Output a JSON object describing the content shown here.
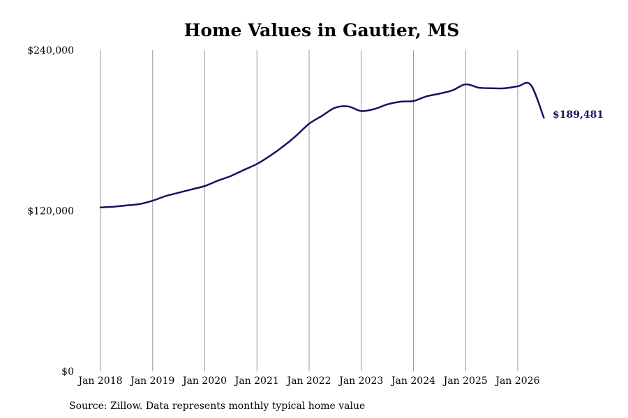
{
  "chart_data": {
    "type": "line",
    "title": "Home Values in Gautier, MS",
    "xlabel": "",
    "ylabel": "",
    "ylim": [
      0,
      240000
    ],
    "y_ticks": [
      "$0",
      "$120,000",
      "$240,000"
    ],
    "x_ticks": [
      "Jan 2018",
      "Jan 2019",
      "Jan 2020",
      "Jan 2021",
      "Jan 2022",
      "Jan 2023",
      "Jan 2024",
      "Jan 2025",
      "Jan 2026"
    ],
    "x_tick_dates": [
      "2018-01",
      "2019-01",
      "2020-01",
      "2021-01",
      "2022-01",
      "2023-01",
      "2024-01",
      "2025-01",
      "2026-01"
    ],
    "grid": "vertical",
    "legend": "none",
    "end_label": "$189,481",
    "line_color": "#14135e",
    "series": [
      {
        "x": [
          "2018-01",
          "2018-04",
          "2018-07",
          "2018-10",
          "2019-01",
          "2019-04",
          "2019-07",
          "2019-10",
          "2020-01",
          "2020-04",
          "2020-07",
          "2020-10",
          "2021-01",
          "2021-04",
          "2021-07",
          "2021-10",
          "2022-01",
          "2022-04",
          "2022-07",
          "2022-10",
          "2023-01",
          "2023-04",
          "2023-07",
          "2023-10",
          "2024-01",
          "2024-04",
          "2024-07",
          "2024-10",
          "2025-01",
          "2025-04",
          "2025-07",
          "2025-10",
          "2026-01",
          "2026-04",
          "2026-07"
        ],
        "values": [
          122500,
          123000,
          124000,
          125000,
          127500,
          131000,
          133500,
          136000,
          138500,
          142500,
          146000,
          150500,
          155000,
          161000,
          168000,
          176000,
          185000,
          191000,
          197000,
          198000,
          194500,
          196000,
          199500,
          201500,
          202000,
          205500,
          207500,
          210000,
          214500,
          212000,
          211500,
          211500,
          213000,
          214000,
          189481
        ]
      }
    ]
  },
  "source": "Source: Zillow. Data represents monthly typical home value"
}
